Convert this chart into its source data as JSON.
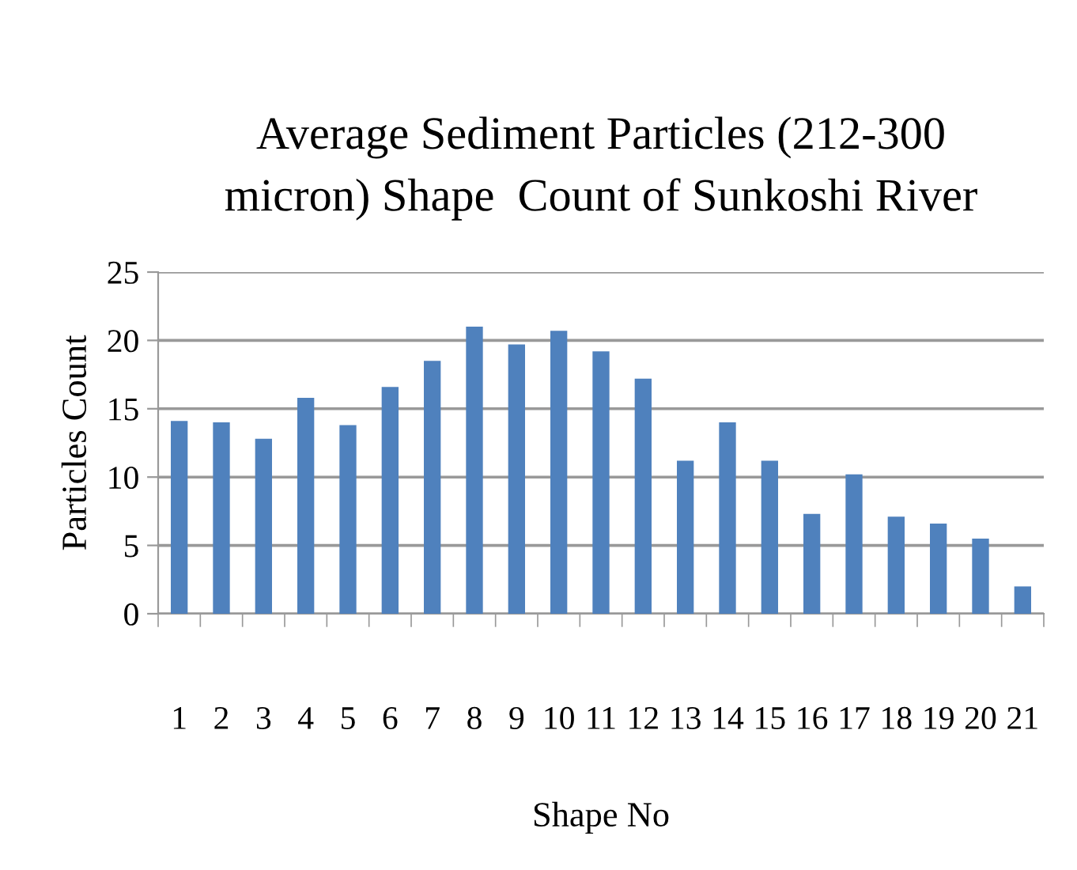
{
  "chart_data": {
    "type": "bar",
    "title": "Average Sediment Particles (212-300\nmicron) Shape  Count of Sunkoshi River",
    "xlabel": "Shape No",
    "ylabel": "Particles Count",
    "categories": [
      "1",
      "2",
      "3",
      "4",
      "5",
      "6",
      "7",
      "8",
      "9",
      "10",
      "11",
      "12",
      "13",
      "14",
      "15",
      "16",
      "17",
      "18",
      "19",
      "20",
      "21"
    ],
    "values": [
      14.1,
      14.0,
      12.8,
      15.8,
      13.8,
      16.6,
      18.5,
      21.0,
      19.7,
      20.7,
      19.2,
      17.2,
      11.2,
      14.0,
      11.2,
      7.3,
      10.2,
      7.1,
      6.6,
      5.5,
      2.0
    ],
    "color": "#4f81bd",
    "ylim": [
      0,
      25
    ],
    "yticks": [
      0,
      5,
      10,
      15,
      20,
      25
    ],
    "grid": "y"
  }
}
